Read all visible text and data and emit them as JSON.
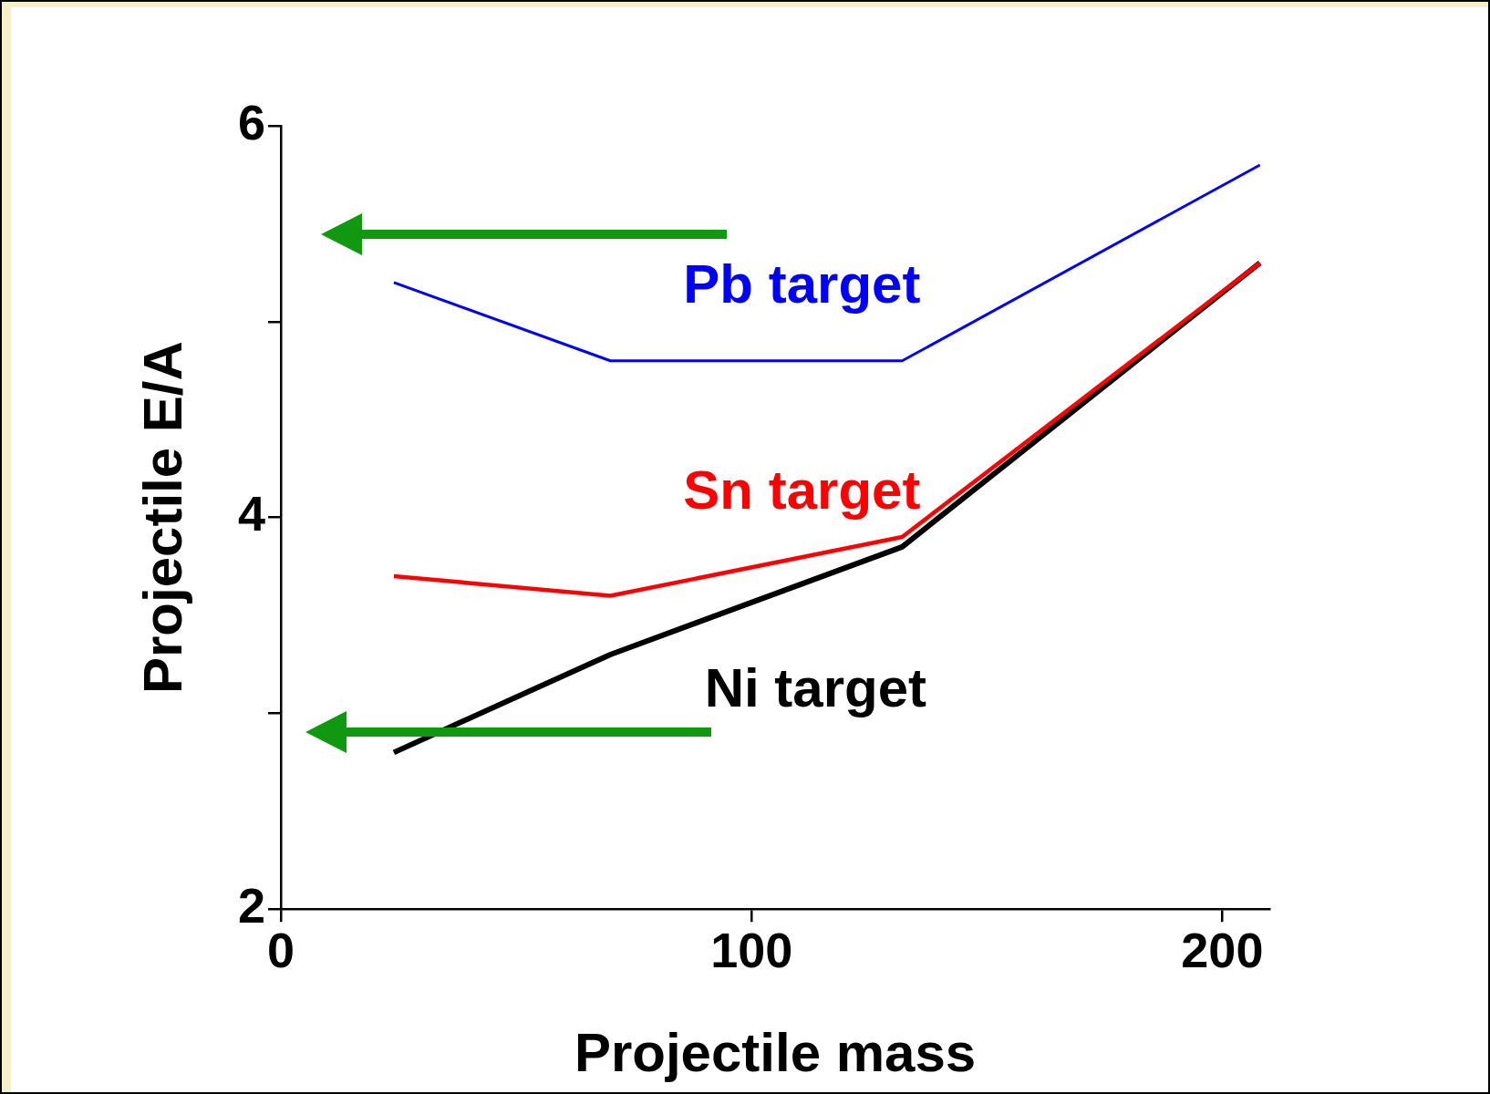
{
  "chart_data": {
    "type": "line",
    "xlabel": "Projectile mass",
    "ylabel": "Projectile E/A",
    "x": [
      24,
      70,
      132,
      208
    ],
    "series": [
      {
        "name": "Pb target",
        "color": "#0000ff",
        "values": [
          5.2,
          4.8,
          4.8,
          5.8
        ]
      },
      {
        "name": "Sn target",
        "color": "#ff0000",
        "values": [
          3.7,
          3.6,
          3.9,
          5.3
        ]
      },
      {
        "name": "Ni target",
        "color": "#000000",
        "values": [
          2.8,
          3.3,
          3.85,
          5.3
        ]
      }
    ],
    "xlim": [
      0,
      210
    ],
    "xticks": [
      0,
      100,
      200
    ],
    "ylim": [
      2,
      6
    ],
    "yticks": [
      2,
      {
        "value": 3,
        "label": null
      },
      4,
      {
        "value": 5,
        "label": null
      },
      6
    ],
    "grid": false,
    "legend": false,
    "marker": "none",
    "line_style": "solid"
  }
}
